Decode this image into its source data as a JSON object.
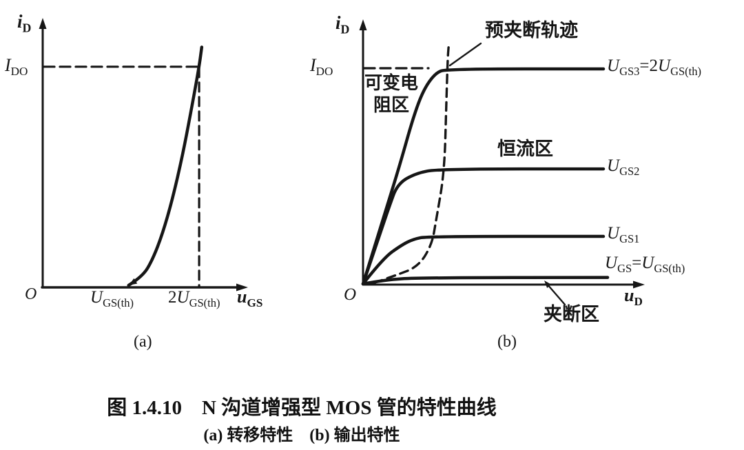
{
  "figure": {
    "number": "图 1.4.10",
    "title": "N 沟道增强型 MOS 管的特性曲线",
    "subfig_a": "转移特性",
    "subfig_b": "输出特性"
  },
  "labels": {
    "caption_line1": "图 1.4.10　N 沟道增强型 MOS 管的特性曲线",
    "caption_line2": "(a) 转移特性　(b) 输出特性",
    "a": {
      "ylabel": [
        {
          "t": "i",
          "var": true
        },
        {
          "t": "D",
          "sub": true
        }
      ],
      "ido": [
        {
          "t": "I",
          "var": true
        },
        {
          "t": "DO",
          "sub": true
        }
      ],
      "origin": [
        {
          "t": "O",
          "var": true
        }
      ],
      "tick_th": [
        {
          "t": "U",
          "var": true
        },
        {
          "t": "GS(th)",
          "sub": true
        }
      ],
      "tick_2th": [
        {
          "t": "2"
        },
        {
          "t": "U",
          "var": true
        },
        {
          "t": "GS(th)",
          "sub": true
        }
      ],
      "xlabel": [
        {
          "t": "u",
          "var": true
        },
        {
          "t": "GS",
          "sub": true
        }
      ],
      "caption": "(a)"
    },
    "b": {
      "ylabel": [
        {
          "t": "i",
          "var": true
        },
        {
          "t": "D",
          "sub": true
        }
      ],
      "ido": [
        {
          "t": "I",
          "var": true
        },
        {
          "t": "DO",
          "sub": true
        }
      ],
      "origin": [
        {
          "t": "O",
          "var": true
        }
      ],
      "xlabel": [
        {
          "t": "u",
          "var": true
        },
        {
          "t": "D",
          "sub": true
        }
      ],
      "caption": "(b)",
      "region_var_res_line1": "可变电",
      "region_var_res_line2": "阻区",
      "region_const_current": "恒流区",
      "region_pinch_off": "夹断区",
      "locus_label": "预夹断轨迹",
      "curve3": [
        {
          "t": "U",
          "var": true
        },
        {
          "t": "GS3",
          "sub": true
        },
        {
          "t": "=2"
        },
        {
          "t": "U",
          "var": true
        },
        {
          "t": "GS(th)",
          "sub": true
        }
      ],
      "curve2": [
        {
          "t": "U",
          "var": true
        },
        {
          "t": "GS2",
          "sub": true
        }
      ],
      "curve1": [
        {
          "t": "U",
          "var": true
        },
        {
          "t": "GS1",
          "sub": true
        }
      ],
      "curve0": [
        {
          "t": "U",
          "var": true
        },
        {
          "t": "GS",
          "sub": true
        },
        {
          "t": "="
        },
        {
          "t": "U",
          "var": true
        },
        {
          "t": "GS(th)",
          "sub": true
        }
      ]
    }
  },
  "chart_data": [
    {
      "id": "transfer",
      "type": "line",
      "title": "(a) 转移特性",
      "xlabel": "u_GS",
      "ylabel": "i_D",
      "x_ticks": [
        "O",
        "U_GS(th)",
        "2U_GS(th)"
      ],
      "y_ticks": [
        "I_DO"
      ],
      "description": "i_D = 0 below threshold U_GS(th); rises parabolically; i_D = I_DO at u_GS = 2U_GS(th)",
      "axis_rel": {
        "U_GS(th)": 0.43,
        "2U_GS(th)": 0.783,
        "I_DO": 0.826
      },
      "curve_points": [
        [
          0.43,
          0
        ],
        [
          0.5,
          0.033
        ],
        [
          0.55,
          0.097
        ],
        [
          0.6,
          0.195
        ],
        [
          0.65,
          0.327
        ],
        [
          0.7,
          0.491
        ],
        [
          0.74,
          0.648
        ],
        [
          0.783,
          0.826
        ],
        [
          0.796,
          0.9
        ]
      ],
      "guides": {
        "dashed_h_at_IDO": true,
        "dashed_v_at_2Uth": true
      }
    },
    {
      "id": "output",
      "type": "line",
      "title": "(b) 输出特性",
      "xlabel": "u_D",
      "ylabel": "i_D",
      "y_ticks": [
        "I_DO"
      ],
      "series": [
        {
          "label": "U_GS3=2U_GS(th)",
          "sat_level": 1.0,
          "points": [
            [
              0,
              0
            ],
            [
              0.072,
              0.301
            ],
            [
              0.132,
              0.551
            ],
            [
              0.181,
              0.776
            ],
            [
              0.218,
              0.904
            ],
            [
              0.261,
              0.981
            ],
            [
              0.3,
              1.0
            ],
            [
              0.866,
              1.0
            ]
          ]
        },
        {
          "label": "U_GS2",
          "sat_level": 0.535,
          "points": [
            [
              0,
              0
            ],
            [
              0.063,
              0.24
            ],
            [
              0.094,
              0.359
            ],
            [
              0.124,
              0.465
            ],
            [
              0.19,
              0.515
            ],
            [
              0.275,
              0.535
            ],
            [
              0.866,
              0.535
            ]
          ]
        },
        {
          "label": "U_GS1",
          "sat_level": 0.221,
          "points": [
            [
              0,
              0
            ],
            [
              0.072,
              0.119
            ],
            [
              0.139,
              0.181
            ],
            [
              0.181,
              0.208
            ],
            [
              0.231,
              0.221
            ],
            [
              0.866,
              0.221
            ]
          ]
        },
        {
          "label": "U_GS=U_GS(th)",
          "sat_level": 0.03,
          "points": [
            [
              0,
              0
            ],
            [
              0.079,
              0.019
            ],
            [
              0.201,
              0.029
            ],
            [
              0.881,
              0.03
            ]
          ]
        }
      ],
      "pinchoff_locus": {
        "label": "预夹断轨迹",
        "style": "dashed",
        "points": [
          [
            0.04,
            0.005
          ],
          [
            0.114,
            0.038
          ],
          [
            0.199,
            0.08
          ],
          [
            0.248,
            0.183
          ],
          [
            0.263,
            0.295
          ],
          [
            0.293,
            0.519
          ],
          [
            0.3,
            0.84
          ],
          [
            0.305,
            1.05
          ],
          [
            0.308,
            1.1
          ]
        ]
      },
      "regions": [
        {
          "label": "可变电阻区"
        },
        {
          "label": "恒流区"
        },
        {
          "label": "夹断区"
        }
      ]
    }
  ]
}
